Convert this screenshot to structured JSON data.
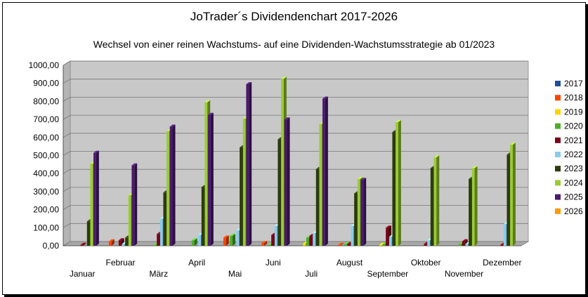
{
  "title": "JoTrader´s Dividendenchart 2017-2026",
  "subtitle": "Wechsel von einer reinen Wachstums- auf eine Dividenden-Wachstumsstrategie ab 01/2023",
  "chart_data": {
    "type": "bar",
    "style": "3d-clustered-column",
    "categories": [
      "Januar",
      "Februar",
      "März",
      "April",
      "Mai",
      "Juni",
      "Juli",
      "August",
      "September",
      "Oktober",
      "November",
      "Dezember"
    ],
    "y_tick_labels": [
      "0,00",
      "100,00",
      "200,00",
      "300,00",
      "400,00",
      "500,00",
      "600,00",
      "700,00",
      "800,00",
      "900,00",
      "1000,00"
    ],
    "ylim": [
      0,
      1000
    ],
    "grid": true,
    "legend_position": "right",
    "series": [
      {
        "name": "2017",
        "color": "#1f4e9c",
        "values": [
          0,
          0,
          0,
          0,
          0,
          0,
          0,
          0,
          0,
          0,
          0,
          0
        ]
      },
      {
        "name": "2018",
        "color": "#ff4500",
        "values": [
          0,
          25,
          0,
          0,
          45,
          15,
          0,
          5,
          0,
          0,
          0,
          0
        ]
      },
      {
        "name": "2019",
        "color": "#ffd400",
        "values": [
          0,
          0,
          0,
          0,
          0,
          0,
          12,
          0,
          5,
          0,
          0,
          0
        ]
      },
      {
        "name": "2020",
        "color": "#4caf2a",
        "values": [
          0,
          0,
          5,
          30,
          55,
          5,
          45,
          10,
          10,
          0,
          10,
          0
        ]
      },
      {
        "name": "2021",
        "color": "#7b0016",
        "values": [
          5,
          30,
          65,
          0,
          0,
          60,
          55,
          10,
          100,
          10,
          25,
          5
        ]
      },
      {
        "name": "2022",
        "color": "#88ccee",
        "values": [
          0,
          10,
          150,
          60,
          85,
          110,
          70,
          110,
          50,
          30,
          10,
          120
        ]
      },
      {
        "name": "2023",
        "color": "#2b3b0b",
        "values": [
          135,
          45,
          295,
          325,
          545,
          590,
          425,
          290,
          630,
          430,
          370,
          505
        ]
      },
      {
        "name": "2024",
        "color": "#9acd32",
        "values": [
          455,
          280,
          635,
          795,
          705,
          925,
          675,
          370,
          685,
          490,
          430,
          560
        ]
      },
      {
        "name": "2025",
        "color": "#4b1a6e",
        "values": [
          515,
          445,
          660,
          725,
          895,
          700,
          815,
          365,
          0,
          0,
          0,
          0
        ]
      },
      {
        "name": "2026",
        "color": "#ff9900",
        "values": [
          0,
          0,
          0,
          0,
          0,
          0,
          0,
          0,
          0,
          0,
          0,
          0
        ]
      }
    ]
  }
}
